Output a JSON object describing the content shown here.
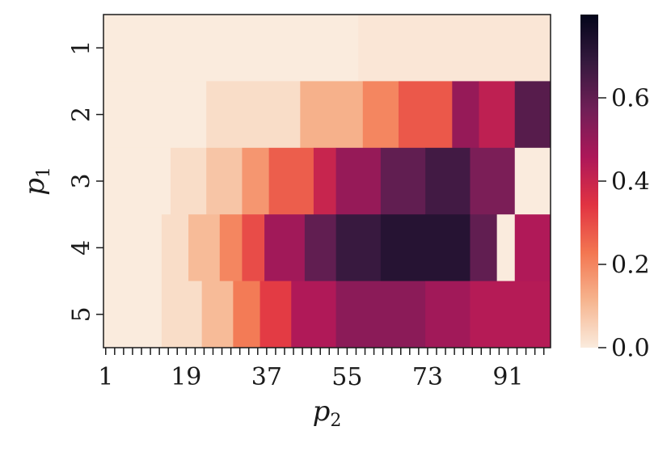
{
  "chart_data": {
    "type": "heatmap",
    "title": "",
    "xlabel": {
      "base": "p",
      "sub": "2"
    },
    "ylabel": {
      "base": "p",
      "sub": "1"
    },
    "x_range": [
      1,
      100
    ],
    "x_tick_labels": [
      "1",
      "19",
      "37",
      "55",
      "73",
      "91"
    ],
    "x_tick_values": [
      1,
      19,
      37,
      55,
      73,
      91
    ],
    "y_categories": [
      "1",
      "2",
      "3",
      "4",
      "5"
    ],
    "colorbar": {
      "range": [
        0.0,
        0.8
      ],
      "tick_labels": [
        "0.0",
        "0.2",
        "0.4",
        "0.6"
      ],
      "tick_values": [
        0.0,
        0.2,
        0.4,
        0.6
      ],
      "colormap": "rocket_r",
      "stops": [
        "#faebdd",
        "#f6b48e",
        "#f37651",
        "#e13342",
        "#ad1759",
        "#701f57",
        "#35193e",
        "#03051a"
      ]
    },
    "rows": [
      {
        "p1": 1,
        "segments": [
          {
            "from": 1,
            "to": 57,
            "value": 0.0
          },
          {
            "from": 58,
            "to": 100,
            "value": 0.01
          }
        ]
      },
      {
        "p1": 2,
        "segments": [
          {
            "from": 1,
            "to": 23,
            "value": 0.0
          },
          {
            "from": 24,
            "to": 44,
            "value": 0.03
          },
          {
            "from": 45,
            "to": 58,
            "value": 0.12
          },
          {
            "from": 59,
            "to": 66,
            "value": 0.2
          },
          {
            "from": 67,
            "to": 78,
            "value": 0.28
          },
          {
            "from": 79,
            "to": 84,
            "value": 0.5
          },
          {
            "from": 85,
            "to": 92,
            "value": 0.42
          },
          {
            "from": 93,
            "to": 100,
            "value": 0.62
          }
        ]
      },
      {
        "p1": 3,
        "segments": [
          {
            "from": 1,
            "to": 15,
            "value": 0.0
          },
          {
            "from": 16,
            "to": 23,
            "value": 0.03
          },
          {
            "from": 24,
            "to": 31,
            "value": 0.08
          },
          {
            "from": 32,
            "to": 37,
            "value": 0.17
          },
          {
            "from": 38,
            "to": 47,
            "value": 0.27
          },
          {
            "from": 48,
            "to": 52,
            "value": 0.4
          },
          {
            "from": 53,
            "to": 62,
            "value": 0.5
          },
          {
            "from": 63,
            "to": 72,
            "value": 0.6
          },
          {
            "from": 73,
            "to": 82,
            "value": 0.66
          },
          {
            "from": 83,
            "to": 92,
            "value": 0.55
          },
          {
            "from": 93,
            "to": 100,
            "value": 0.0
          }
        ]
      },
      {
        "p1": 4,
        "segments": [
          {
            "from": 1,
            "to": 13,
            "value": 0.0
          },
          {
            "from": 14,
            "to": 19,
            "value": 0.03
          },
          {
            "from": 20,
            "to": 26,
            "value": 0.1
          },
          {
            "from": 27,
            "to": 31,
            "value": 0.2
          },
          {
            "from": 32,
            "to": 36,
            "value": 0.3
          },
          {
            "from": 37,
            "to": 45,
            "value": 0.48
          },
          {
            "from": 46,
            "to": 52,
            "value": 0.6
          },
          {
            "from": 53,
            "to": 62,
            "value": 0.68
          },
          {
            "from": 63,
            "to": 82,
            "value": 0.72
          },
          {
            "from": 83,
            "to": 88,
            "value": 0.6
          },
          {
            "from": 89,
            "to": 92,
            "value": 0.0
          },
          {
            "from": 93,
            "to": 100,
            "value": 0.45
          }
        ]
      },
      {
        "p1": 5,
        "segments": [
          {
            "from": 1,
            "to": 13,
            "value": 0.0
          },
          {
            "from": 14,
            "to": 22,
            "value": 0.03
          },
          {
            "from": 23,
            "to": 29,
            "value": 0.1
          },
          {
            "from": 30,
            "to": 35,
            "value": 0.22
          },
          {
            "from": 36,
            "to": 42,
            "value": 0.33
          },
          {
            "from": 43,
            "to": 52,
            "value": 0.45
          },
          {
            "from": 53,
            "to": 72,
            "value": 0.52
          },
          {
            "from": 73,
            "to": 82,
            "value": 0.48
          },
          {
            "from": 83,
            "to": 100,
            "value": 0.44
          }
        ]
      }
    ]
  }
}
